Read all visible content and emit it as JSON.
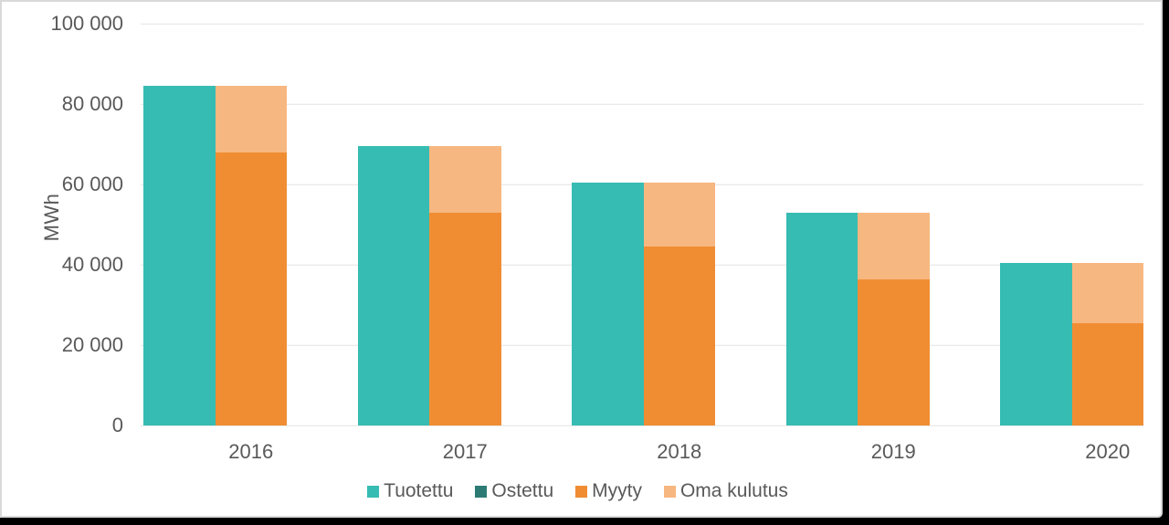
{
  "chart_data": {
    "type": "bar",
    "subtype": "grouped-stacked",
    "title": "",
    "xlabel": "",
    "ylabel": "MWh",
    "categories": [
      "2016",
      "2017",
      "2018",
      "2019",
      "2020"
    ],
    "series": [
      {
        "name": "Tuotettu",
        "stack": "tuotanto",
        "color": "#36BCB2",
        "values": [
          84500,
          69500,
          60500,
          53000,
          40500
        ]
      },
      {
        "name": "Ostettu",
        "stack": "tuotanto",
        "color": "#2B7B74",
        "values": [
          0,
          0,
          0,
          0,
          0
        ]
      },
      {
        "name": "Myyty",
        "stack": "kulutus",
        "color": "#F08D33",
        "values": [
          67900,
          53000,
          44500,
          36300,
          25500
        ]
      },
      {
        "name": "Oma kulutus",
        "stack": "kulutus",
        "color": "#F7B780",
        "values": [
          16600,
          16500,
          16000,
          16700,
          15000
        ]
      }
    ],
    "ylim": [
      0,
      100000
    ],
    "ytick_interval": 20000,
    "ytick_labels": [
      "0",
      "20 000",
      "40 000",
      "60 000",
      "80 000",
      "100 000"
    ],
    "grid": "horizontal",
    "legend_position": "bottom",
    "colors": {
      "axis_text": "#595959",
      "gridline": "#e4e4e4"
    }
  }
}
